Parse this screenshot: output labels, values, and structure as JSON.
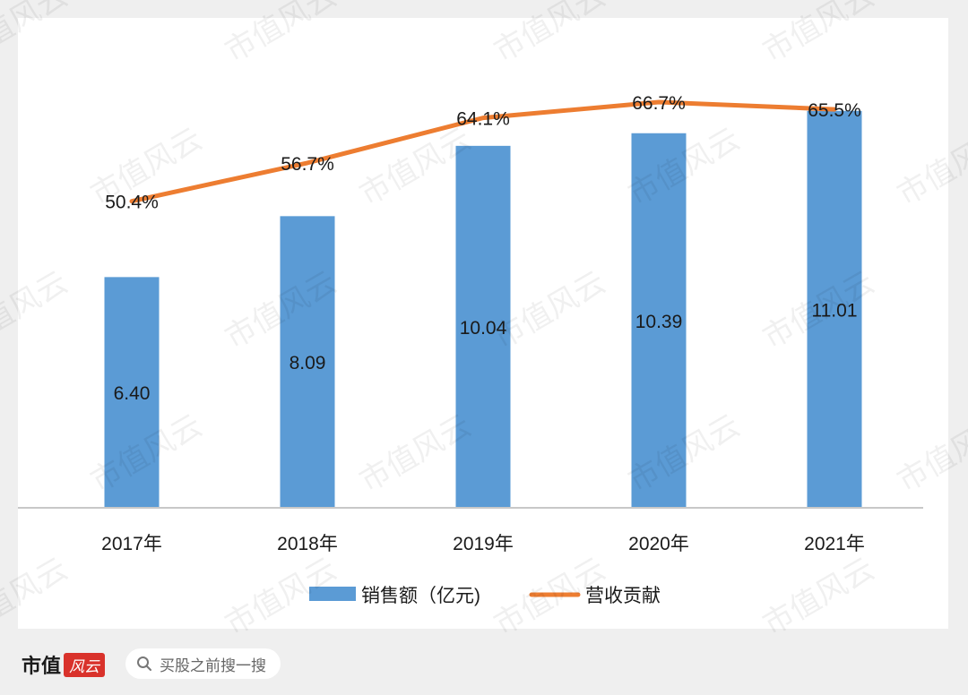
{
  "chart_data": {
    "type": "bar",
    "categories": [
      "2017年",
      "2018年",
      "2019年",
      "2020年",
      "2021年"
    ],
    "series": [
      {
        "name": "销售额（亿元)",
        "type": "bar",
        "values": [
          6.4,
          8.09,
          10.04,
          10.39,
          11.01
        ],
        "labels": [
          "6.40",
          "8.09",
          "10.04",
          "10.39",
          "11.01"
        ],
        "color": "#5b9bd5"
      },
      {
        "name": "营收贡献",
        "type": "line",
        "values": [
          50.4,
          56.7,
          64.1,
          66.7,
          65.5
        ],
        "labels": [
          "50.4%",
          "56.7%",
          "64.1%",
          "66.7%",
          "65.5%"
        ],
        "color": "#ed7d31"
      }
    ],
    "ylim_bar": [
      0,
      11.8
    ],
    "ylim_line": [
      0,
      77
    ],
    "legend": "bottom",
    "grid": false
  },
  "watermark": "市值风云",
  "footer": {
    "brand": "市值",
    "stamp": "风云",
    "search_text": "买股之前搜一搜",
    "search_icon": "search-icon"
  }
}
